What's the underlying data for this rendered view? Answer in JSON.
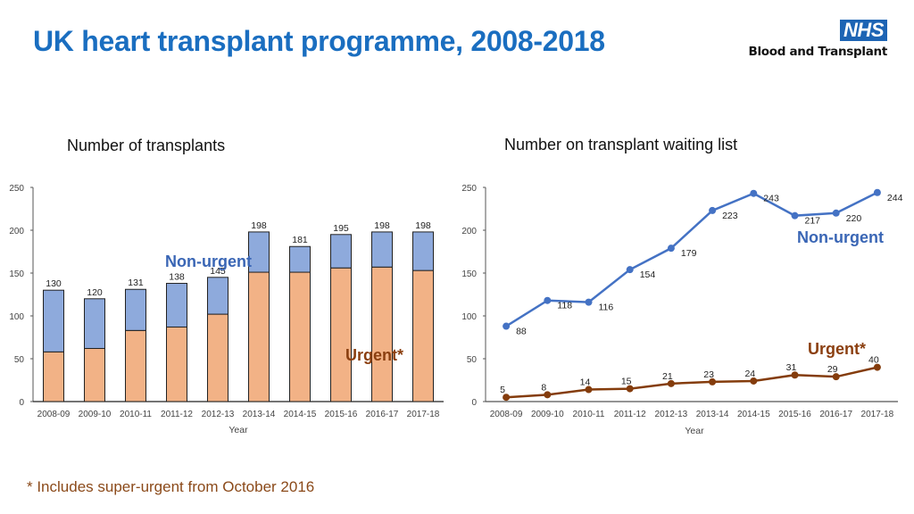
{
  "header": {
    "title": "UK heart transplant programme, 2008-2018",
    "logo_badge": "NHS",
    "logo_text": "Blood and Transplant"
  },
  "footnote": "* Includes super-urgent from October 2016",
  "colors": {
    "title": "#1a6ec0",
    "non_urgent_bar": "#8eaadc",
    "urgent_bar": "#f2b286",
    "non_urgent_line": "#4472c4",
    "urgent_line": "#843c0c"
  },
  "chart_data": [
    {
      "type": "bar",
      "stacked": true,
      "title": "Number of transplants",
      "xlabel": "Year",
      "ylabel": "",
      "ylim": [
        0,
        250
      ],
      "yticks": [
        0,
        50,
        100,
        150,
        200,
        250
      ],
      "grid": false,
      "categories": [
        "2008-09",
        "2009-10",
        "2010-11",
        "2011-12",
        "2012-13",
        "2013-14",
        "2014-15",
        "2015-16",
        "2016-17",
        "2017-18"
      ],
      "series": [
        {
          "name": "Urgent*",
          "values": [
            58,
            62,
            83,
            87,
            102,
            151,
            151,
            156,
            157,
            153
          ]
        },
        {
          "name": "Non-urgent",
          "values": [
            72,
            58,
            48,
            51,
            43,
            47,
            30,
            39,
            41,
            45
          ]
        }
      ],
      "totals": [
        130,
        120,
        131,
        138,
        145,
        198,
        181,
        195,
        198,
        198
      ],
      "annotations": [
        {
          "text": "Non-urgent",
          "series": "Non-urgent"
        },
        {
          "text": "Urgent*",
          "series": "Urgent*"
        }
      ]
    },
    {
      "type": "line",
      "title": "Number on transplant waiting list",
      "xlabel": "Year",
      "ylabel": "",
      "ylim": [
        0,
        250
      ],
      "yticks": [
        0,
        50,
        100,
        150,
        200,
        250
      ],
      "grid": false,
      "categories": [
        "2008-09",
        "2009-10",
        "2010-11",
        "2011-12",
        "2012-13",
        "2013-14",
        "2014-15",
        "2015-16",
        "2016-17",
        "2017-18"
      ],
      "series": [
        {
          "name": "Non-urgent",
          "values": [
            88,
            118,
            116,
            154,
            179,
            223,
            243,
            217,
            220,
            244
          ]
        },
        {
          "name": "Urgent*",
          "values": [
            5,
            8,
            14,
            15,
            21,
            23,
            24,
            31,
            29,
            40
          ]
        }
      ],
      "annotations": [
        {
          "text": "Non-urgent",
          "series": "Non-urgent"
        },
        {
          "text": "Urgent*",
          "series": "Urgent*"
        }
      ]
    }
  ]
}
